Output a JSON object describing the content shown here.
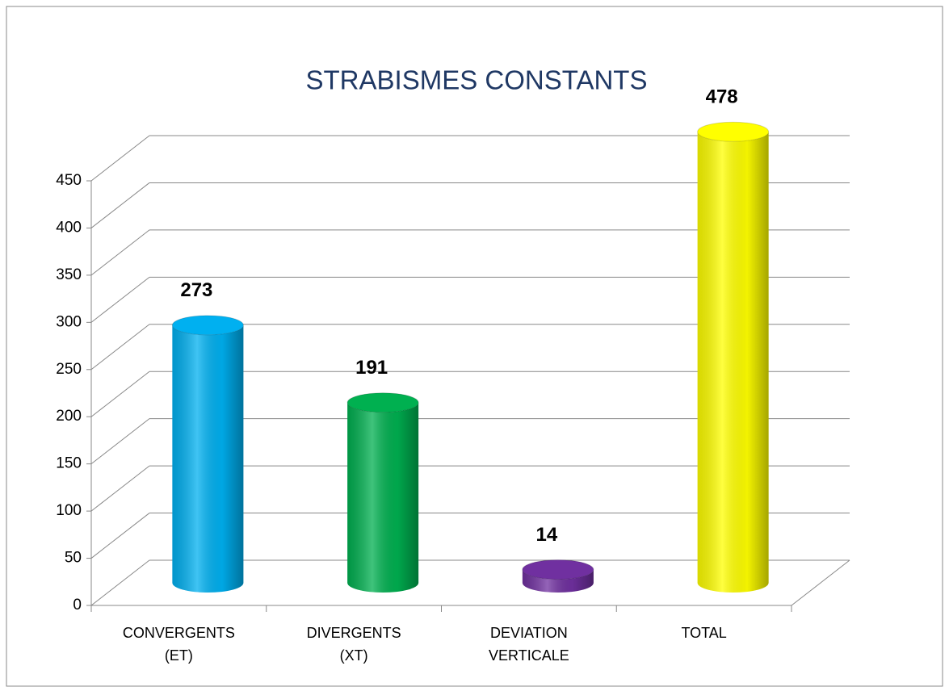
{
  "chart_data": {
    "type": "bar3d",
    "title": "STRABISMES CONSTANTS",
    "categories": [
      "CONVERGENTS (ET)",
      "DIVERGENTS (XT)",
      "DEVIATION VERTICALE",
      "TOTAL"
    ],
    "values": [
      273,
      191,
      14,
      478
    ],
    "colors": [
      "#00b0f0",
      "#00b050",
      "#7030a0",
      "#ffff00"
    ],
    "ylim": [
      0,
      450
    ],
    "yticks": [
      0,
      50,
      100,
      150,
      200,
      250,
      300,
      350,
      400,
      450
    ],
    "grid": true
  }
}
